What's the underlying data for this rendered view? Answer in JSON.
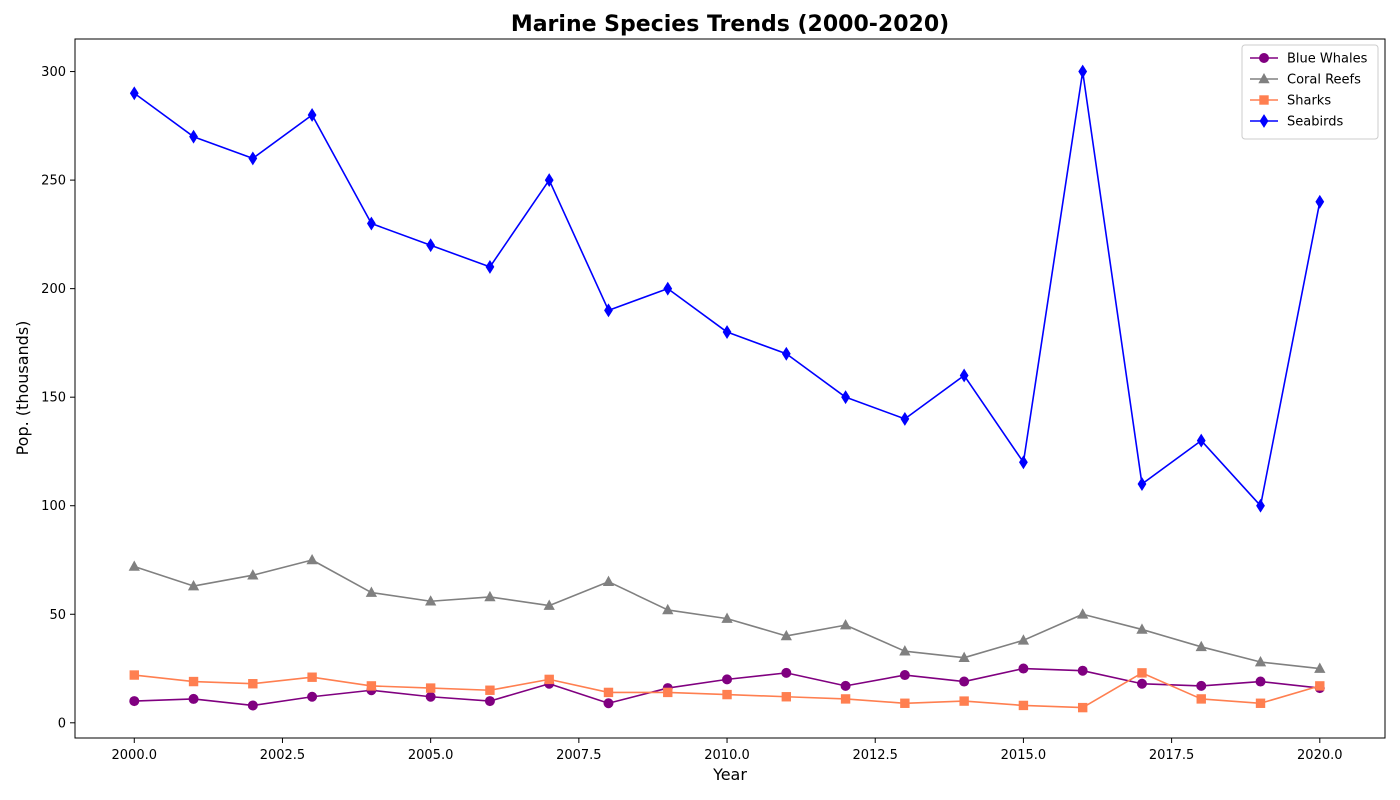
{
  "chart_data": {
    "type": "line",
    "title": "Marine Species Trends (2000-2020)",
    "xlabel": "Year",
    "ylabel": "Pop. (thousands)",
    "xlim": [
      1999,
      2021.1
    ],
    "ylim": [
      -7,
      315
    ],
    "x_ticks": [
      2000.0,
      2002.5,
      2005.0,
      2007.5,
      2010.0,
      2012.5,
      2015.0,
      2017.5,
      2020.0
    ],
    "x_tick_labels": [
      "2000.0",
      "2002.5",
      "2005.0",
      "2007.5",
      "2010.0",
      "2012.5",
      "2015.0",
      "2017.5",
      "2020.0"
    ],
    "y_ticks": [
      0,
      50,
      100,
      150,
      200,
      250,
      300
    ],
    "y_tick_labels": [
      "0",
      "50",
      "100",
      "150",
      "200",
      "250",
      "300"
    ],
    "grid": false,
    "legend_position": "top-right",
    "x": [
      2000,
      2001,
      2002,
      2003,
      2004,
      2005,
      2006,
      2007,
      2008,
      2009,
      2010,
      2011,
      2012,
      2013,
      2014,
      2015,
      2016,
      2017,
      2018,
      2019,
      2020
    ],
    "series": [
      {
        "name": "Blue Whales",
        "color": "#800080",
        "marker": "circle",
        "values": [
          10,
          11,
          8,
          12,
          15,
          12,
          10,
          18,
          9,
          16,
          20,
          23,
          17,
          22,
          19,
          25,
          24,
          18,
          17,
          19,
          16
        ]
      },
      {
        "name": "Coral Reefs",
        "color": "#808080",
        "marker": "triangle",
        "values": [
          72,
          63,
          68,
          75,
          60,
          56,
          58,
          54,
          65,
          52,
          48,
          40,
          45,
          33,
          30,
          38,
          50,
          43,
          35,
          28,
          25
        ]
      },
      {
        "name": "Sharks",
        "color": "#ff7f50",
        "marker": "square",
        "values": [
          22,
          19,
          18,
          21,
          17,
          16,
          15,
          20,
          14,
          14,
          13,
          12,
          11,
          9,
          10,
          8,
          7,
          23,
          11,
          9,
          17
        ]
      },
      {
        "name": "Seabirds",
        "color": "#0000ff",
        "marker": "diamond",
        "values": [
          290,
          270,
          260,
          280,
          230,
          220,
          210,
          250,
          190,
          200,
          180,
          170,
          150,
          140,
          160,
          120,
          300,
          110,
          130,
          100,
          240
        ]
      }
    ]
  }
}
